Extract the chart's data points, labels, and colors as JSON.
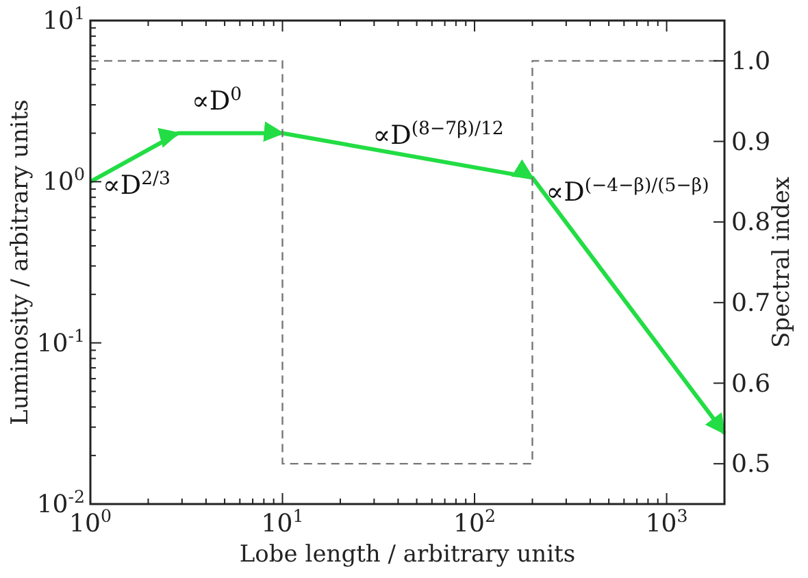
{
  "chart_data": {
    "type": "line",
    "xlabel": "Lobe length / arbitrary units",
    "ylabel": "Luminosity / arbitrary units",
    "y2label": "Spectral index",
    "log": "xy",
    "grid": false,
    "xlim": [
      1,
      2000
    ],
    "ylim": [
      0.01,
      10
    ],
    "y2lim": [
      0.45,
      1.05
    ],
    "xticks": [
      {
        "value": 1,
        "label": "10$^{0}$"
      },
      {
        "value": 2,
        "label": null
      },
      {
        "value": 3,
        "label": null
      },
      {
        "value": 4,
        "label": null
      },
      {
        "value": 5,
        "label": null
      },
      {
        "value": 6,
        "label": null
      },
      {
        "value": 7,
        "label": null
      },
      {
        "value": 8,
        "label": null
      },
      {
        "value": 9,
        "label": null
      },
      {
        "value": 10,
        "label": "10$^{1}$"
      },
      {
        "value": 20,
        "label": null
      },
      {
        "value": 30,
        "label": null
      },
      {
        "value": 40,
        "label": null
      },
      {
        "value": 50,
        "label": null
      },
      {
        "value": 60,
        "label": null
      },
      {
        "value": 70,
        "label": null
      },
      {
        "value": 80,
        "label": null
      },
      {
        "value": 90,
        "label": null
      },
      {
        "value": 100,
        "label": "10$^{2}$"
      },
      {
        "value": 200,
        "label": null
      },
      {
        "value": 300,
        "label": null
      },
      {
        "value": 400,
        "label": null
      },
      {
        "value": 500,
        "label": null
      },
      {
        "value": 600,
        "label": null
      },
      {
        "value": 700,
        "label": null
      },
      {
        "value": 800,
        "label": null
      },
      {
        "value": 900,
        "label": null
      },
      {
        "value": 1000,
        "label": "10$^{3}$"
      },
      {
        "value": 2000,
        "label": null
      }
    ],
    "yticks": [
      {
        "value": 0.01,
        "label": "10$^{-2}$"
      },
      {
        "value": 0.02,
        "label": null
      },
      {
        "value": 0.03,
        "label": null
      },
      {
        "value": 0.04,
        "label": null
      },
      {
        "value": 0.05,
        "label": null
      },
      {
        "value": 0.06,
        "label": null
      },
      {
        "value": 0.07,
        "label": null
      },
      {
        "value": 0.08,
        "label": null
      },
      {
        "value": 0.09,
        "label": null
      },
      {
        "value": 0.1,
        "label": "10$^{-1}$"
      },
      {
        "value": 0.2,
        "label": null
      },
      {
        "value": 0.3,
        "label": null
      },
      {
        "value": 0.4,
        "label": null
      },
      {
        "value": 0.5,
        "label": null
      },
      {
        "value": 0.6,
        "label": null
      },
      {
        "value": 0.7,
        "label": null
      },
      {
        "value": 0.8,
        "label": null
      },
      {
        "value": 0.9,
        "label": null
      },
      {
        "value": 1,
        "label": "10$^{0}$"
      },
      {
        "value": 2,
        "label": null
      },
      {
        "value": 3,
        "label": null
      },
      {
        "value": 4,
        "label": null
      },
      {
        "value": 5,
        "label": null
      },
      {
        "value": 6,
        "label": null
      },
      {
        "value": 7,
        "label": null
      },
      {
        "value": 8,
        "label": null
      },
      {
        "value": 9,
        "label": null
      },
      {
        "value": 10,
        "label": "10$^{1}$"
      }
    ],
    "y2ticks": [
      {
        "value": 0.5,
        "label": "0.5"
      },
      {
        "value": 0.6,
        "label": "0.6"
      },
      {
        "value": 0.7,
        "label": "0.7"
      },
      {
        "value": 0.8,
        "label": "0.8"
      },
      {
        "value": 0.9,
        "label": "0.9"
      },
      {
        "value": 1,
        "label": "1.0"
      }
    ],
    "series": [
      {
        "type": "line",
        "color": "#22dd44",
        "x": [
          1,
          2.86,
          10,
          200,
          2000
        ],
        "values": [
          1,
          2,
          2,
          1.06,
          0.0275
        ]
      },
      {
        "type": "step",
        "axis": "y2",
        "color": "#777777",
        "line_style": "dashed",
        "x": [
          1,
          10,
          200,
          2000
        ],
        "values": [
          1,
          0.5,
          1,
          1
        ]
      }
    ],
    "annotations": [
      "∝D$^{2/3}$",
      "∝D$^{0}$",
      "∝D$^{(8−7β)/12}$",
      "∝D$^{(−4−β)/(5−β)}$"
    ]
  }
}
